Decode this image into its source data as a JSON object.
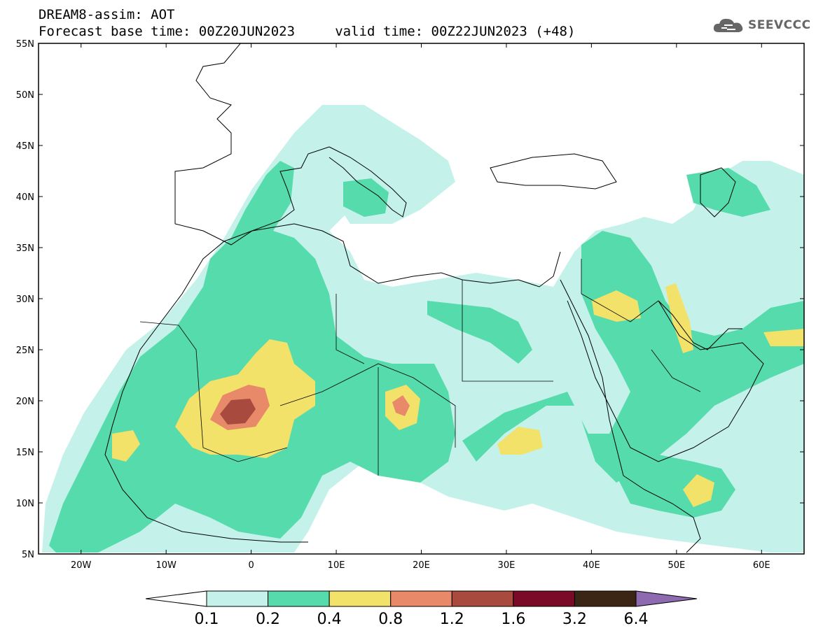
{
  "header": {
    "line1": "DREAM8-assim: AOT",
    "line2": "Forecast base time: 00Z20JUN2023     valid time: 00Z22JUN2023 (+48)"
  },
  "logo": {
    "text": "SEEVCCC",
    "icon": "cloud-icon",
    "color": "#666666"
  },
  "map": {
    "projection": "lat-lon",
    "lon_range": [
      -25,
      65
    ],
    "lat_range": [
      5,
      55
    ],
    "lat_ticks": [
      {
        "value": 5,
        "label": "5N"
      },
      {
        "value": 10,
        "label": "10N"
      },
      {
        "value": 15,
        "label": "15N"
      },
      {
        "value": 20,
        "label": "20N"
      },
      {
        "value": 25,
        "label": "25N"
      },
      {
        "value": 30,
        "label": "30N"
      },
      {
        "value": 35,
        "label": "35N"
      },
      {
        "value": 40,
        "label": "40N"
      },
      {
        "value": 45,
        "label": "45N"
      },
      {
        "value": 50,
        "label": "50N"
      },
      {
        "value": 55,
        "label": "55N"
      }
    ],
    "lon_ticks": [
      {
        "value": -20,
        "label": "20W"
      },
      {
        "value": -10,
        "label": "10W"
      },
      {
        "value": 0,
        "label": "0"
      },
      {
        "value": 10,
        "label": "10E"
      },
      {
        "value": 20,
        "label": "20E"
      },
      {
        "value": 30,
        "label": "30E"
      },
      {
        "value": 40,
        "label": "40E"
      },
      {
        "value": 50,
        "label": "50E"
      },
      {
        "value": 60,
        "label": "60E"
      }
    ]
  },
  "colorbar": {
    "levels": [
      "0.1",
      "0.2",
      "0.4",
      "0.8",
      "1.2",
      "1.6",
      "3.2",
      "6.4"
    ],
    "colors": [
      "#c4f2ea",
      "#55dbac",
      "#f2e26a",
      "#e8896a",
      "#a94a3e",
      "#7b0a28",
      "#3b2616"
    ],
    "under_color": "#ffffff",
    "over_color": "#8e6ab0"
  },
  "legend_levels": {
    "lightcyan": "#c4f2ea",
    "green": "#55dbac",
    "yellow": "#f2e26a",
    "orange": "#e8896a",
    "brown": "#a94a3e"
  }
}
